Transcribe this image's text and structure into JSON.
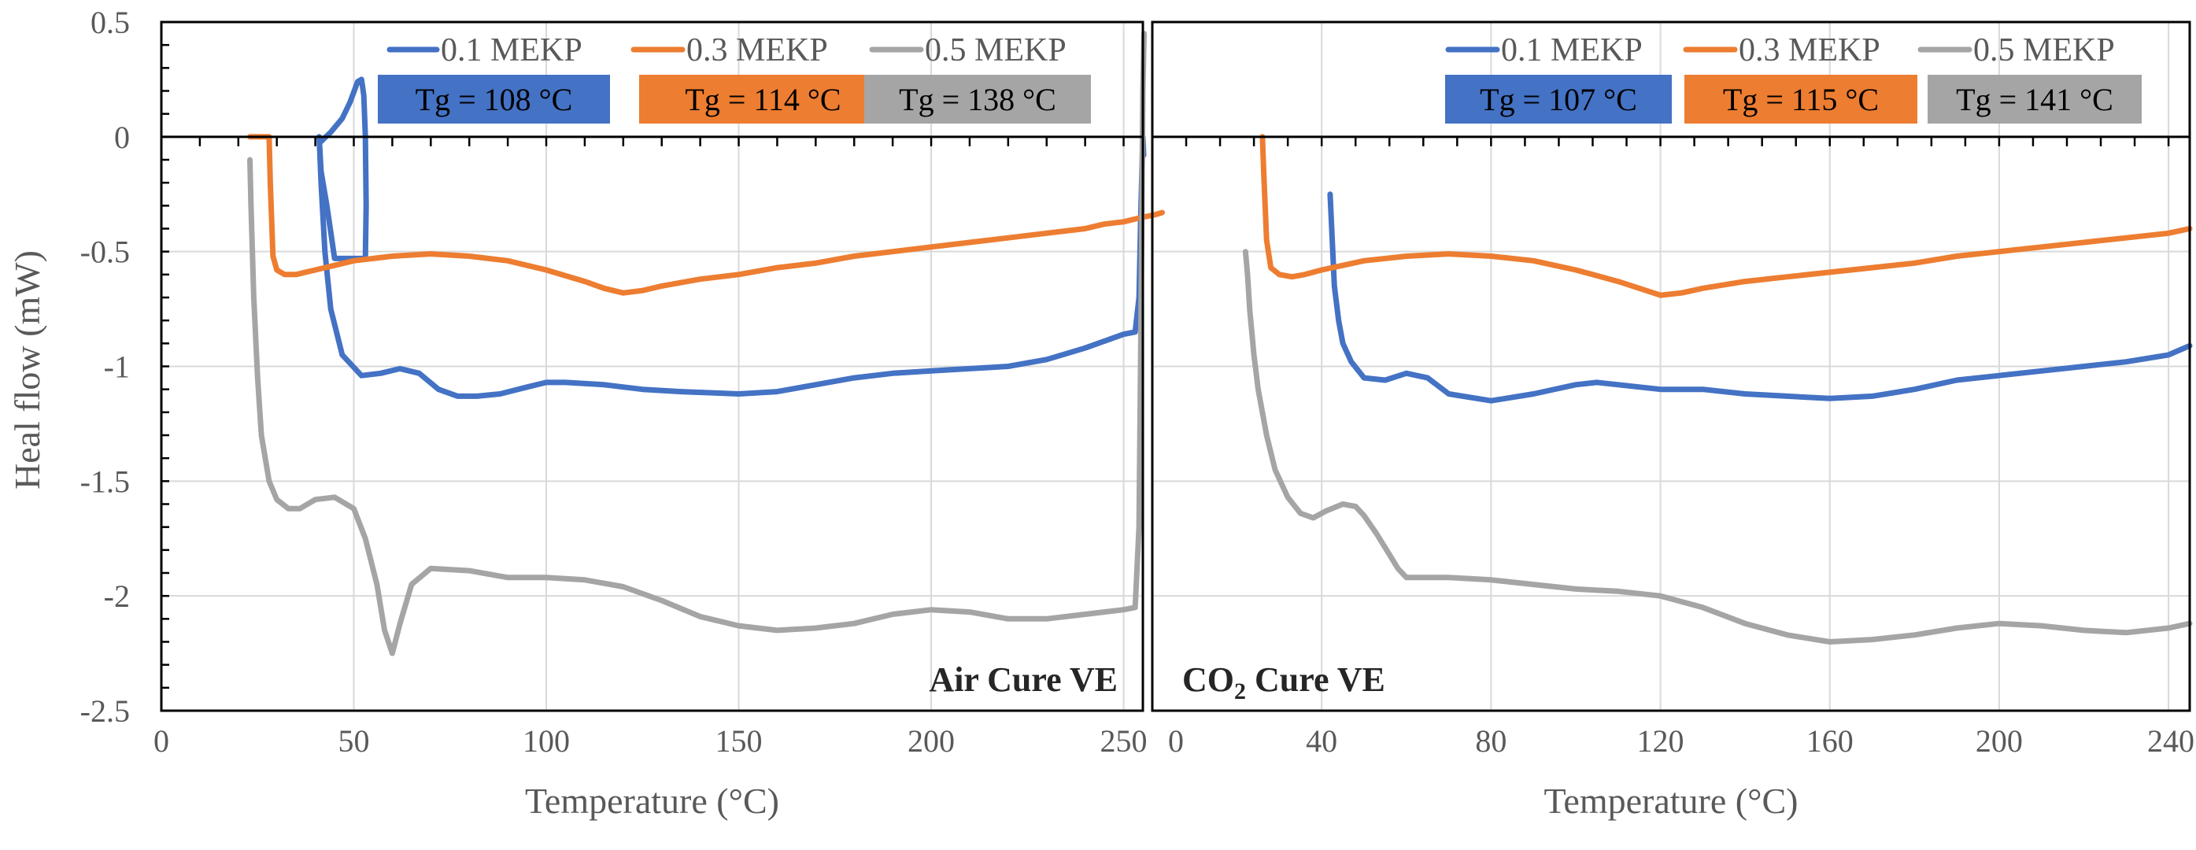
{
  "chart_data": [
    {
      "type": "line",
      "panel_label": "Air Cure VE",
      "xlabel": "Temperature (°C)",
      "ylabel": "Heal flow (mW)",
      "xlim": [
        0,
        255
      ],
      "ylim": [
        -2.5,
        0.5
      ],
      "x_ticks": [
        0,
        50,
        100,
        150,
        200,
        250
      ],
      "y_ticks": [
        0.5,
        0,
        -0.5,
        -1,
        -1.5,
        -2,
        -2.5
      ],
      "y_tick_labels": [
        "0.5",
        "0",
        "-0.5",
        "-1",
        "-1.5",
        "-2",
        "-2.5"
      ],
      "grid": true,
      "legend_position": "top",
      "series": [
        {
          "name": "0.1 MEKP",
          "color": "#4472c4",
          "tg_label": "Tg =  108 °C",
          "x": [
            41,
            41.5,
            44,
            47,
            49,
            51,
            52,
            52.6,
            53,
            53.2,
            53,
            52.5,
            50,
            45,
            43,
            41.5,
            41,
            41.5,
            42.5,
            44,
            47,
            52,
            57,
            62,
            67,
            72,
            77,
            82,
            88,
            95,
            100,
            105,
            115,
            125,
            135,
            150,
            160,
            170,
            180,
            190,
            200,
            210,
            220,
            230,
            240,
            245,
            250,
            253,
            254,
            254.5,
            255,
            255.2
          ],
          "y": [
            0,
            -0.02,
            0.02,
            0.08,
            0.15,
            0.24,
            0.25,
            0.18,
            0,
            -0.3,
            -0.53,
            -0.53,
            -0.53,
            -0.53,
            -0.3,
            -0.15,
            0,
            -0.2,
            -0.5,
            -0.75,
            -0.95,
            -1.04,
            -1.03,
            -1.01,
            -1.03,
            -1.1,
            -1.13,
            -1.13,
            -1.12,
            -1.09,
            -1.07,
            -1.07,
            -1.08,
            -1.1,
            -1.11,
            -1.12,
            -1.11,
            -1.08,
            -1.05,
            -1.03,
            -1.02,
            -1.01,
            -1.0,
            -0.97,
            -0.92,
            -0.89,
            -0.86,
            -0.85,
            -0.7,
            -0.3,
            0,
            -0.08
          ]
        },
        {
          "name": "0.3 MEKP",
          "color": "#ed7d31",
          "tg_label": "Tg = 114 °C",
          "x": [
            23,
            24,
            27,
            28,
            28.3,
            29,
            30,
            32,
            35,
            40,
            45,
            50,
            60,
            70,
            80,
            90,
            100,
            110,
            115,
            120,
            125,
            130,
            140,
            150,
            160,
            170,
            180,
            190,
            200,
            210,
            220,
            230,
            240,
            245,
            250,
            255,
            258,
            260
          ],
          "y": [
            0,
            0,
            0,
            0,
            -0.2,
            -0.52,
            -0.58,
            -0.6,
            -0.6,
            -0.58,
            -0.56,
            -0.54,
            -0.52,
            -0.51,
            -0.52,
            -0.54,
            -0.58,
            -0.63,
            -0.66,
            -0.68,
            -0.67,
            -0.65,
            -0.62,
            -0.6,
            -0.57,
            -0.55,
            -0.52,
            -0.5,
            -0.48,
            -0.46,
            -0.44,
            -0.42,
            -0.4,
            -0.38,
            -0.37,
            -0.35,
            -0.34,
            -0.33
          ]
        },
        {
          "name": "0.5 MEKP",
          "color": "#a5a5a5",
          "tg_label": "Tg = 138 °C",
          "x": [
            23,
            23.3,
            24,
            25,
            26,
            28,
            30,
            33,
            36,
            40,
            45,
            50,
            53,
            56,
            58,
            60,
            62,
            65,
            70,
            80,
            90,
            100,
            110,
            120,
            130,
            140,
            150,
            160,
            170,
            180,
            190,
            200,
            210,
            220,
            230,
            240,
            250,
            253,
            254,
            254.5,
            255,
            255.3
          ],
          "y": [
            -0.1,
            -0.3,
            -0.7,
            -1.05,
            -1.3,
            -1.5,
            -1.58,
            -1.62,
            -1.62,
            -1.58,
            -1.57,
            -1.62,
            -1.75,
            -1.95,
            -2.15,
            -2.25,
            -2.12,
            -1.95,
            -1.88,
            -1.89,
            -1.92,
            -1.92,
            -1.93,
            -1.96,
            -2.02,
            -2.09,
            -2.13,
            -2.15,
            -2.14,
            -2.12,
            -2.08,
            -2.06,
            -2.07,
            -2.1,
            -2.1,
            -2.08,
            -2.06,
            -2.05,
            -1.7,
            -0.8,
            0.2,
            0.45
          ]
        }
      ]
    },
    {
      "type": "line",
      "panel_label_main": "CO",
      "panel_label_sub": "2",
      "panel_label_rest": " Cure VE",
      "xlabel": "Temperature (°C)",
      "ylabel": "",
      "xlim": [
        0,
        245
      ],
      "ylim": [
        -2.5,
        0.5
      ],
      "x_ticks": [
        0,
        40,
        80,
        120,
        160,
        200,
        240
      ],
      "grid": true,
      "legend_position": "top",
      "series": [
        {
          "name": "0.1 MEKP",
          "color": "#4472c4",
          "tg_label": "Tg = 107 °C",
          "x": [
            42,
            42.5,
            43,
            44,
            45,
            47,
            50,
            55,
            60,
            65,
            70,
            80,
            90,
            100,
            105,
            110,
            120,
            130,
            140,
            150,
            160,
            170,
            180,
            190,
            200,
            210,
            220,
            230,
            240,
            245
          ],
          "y": [
            -0.25,
            -0.45,
            -0.65,
            -0.8,
            -0.9,
            -0.98,
            -1.05,
            -1.06,
            -1.03,
            -1.05,
            -1.12,
            -1.15,
            -1.12,
            -1.08,
            -1.07,
            -1.08,
            -1.1,
            -1.1,
            -1.12,
            -1.13,
            -1.14,
            -1.13,
            -1.1,
            -1.06,
            -1.04,
            -1.02,
            -1.0,
            -0.98,
            -0.95,
            -0.91
          ]
        },
        {
          "name": "0.3 MEKP",
          "color": "#ed7d31",
          "tg_label": "Tg = 115 °C",
          "x": [
            26,
            26.3,
            27,
            28,
            30,
            33,
            36,
            40,
            45,
            50,
            60,
            70,
            80,
            90,
            100,
            110,
            115,
            120,
            125,
            130,
            140,
            150,
            160,
            170,
            180,
            190,
            200,
            210,
            220,
            230,
            240,
            245
          ],
          "y": [
            0,
            -0.15,
            -0.45,
            -0.57,
            -0.6,
            -0.61,
            -0.6,
            -0.58,
            -0.56,
            -0.54,
            -0.52,
            -0.51,
            -0.52,
            -0.54,
            -0.58,
            -0.63,
            -0.66,
            -0.69,
            -0.68,
            -0.66,
            -0.63,
            -0.61,
            -0.59,
            -0.57,
            -0.55,
            -0.52,
            -0.5,
            -0.48,
            -0.46,
            -0.44,
            -0.42,
            -0.4
          ]
        },
        {
          "name": "0.5 MEKP",
          "color": "#a5a5a5",
          "tg_label": "Tg = 141 °C",
          "x": [
            22,
            22.5,
            23,
            24,
            25,
            27,
            29,
            32,
            35,
            38,
            41,
            45,
            48,
            50,
            53,
            56,
            58,
            60,
            65,
            70,
            80,
            90,
            100,
            110,
            120,
            130,
            140,
            150,
            160,
            170,
            180,
            190,
            200,
            210,
            220,
            230,
            240,
            245
          ],
          "y": [
            -0.5,
            -0.6,
            -0.75,
            -0.95,
            -1.1,
            -1.3,
            -1.45,
            -1.57,
            -1.64,
            -1.66,
            -1.63,
            -1.6,
            -1.61,
            -1.65,
            -1.73,
            -1.82,
            -1.88,
            -1.92,
            -1.92,
            -1.92,
            -1.93,
            -1.95,
            -1.97,
            -1.98,
            -2.0,
            -2.05,
            -2.12,
            -2.17,
            -2.2,
            -2.19,
            -2.17,
            -2.14,
            -2.12,
            -2.13,
            -2.15,
            -2.16,
            -2.14,
            -2.12
          ]
        }
      ]
    }
  ]
}
